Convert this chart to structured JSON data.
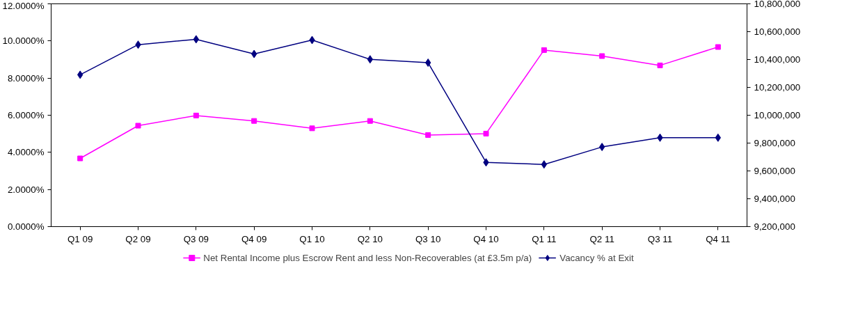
{
  "chart_data": {
    "type": "line",
    "categories": [
      "Q1 09",
      "Q2 09",
      "Q3 09",
      "Q4 09",
      "Q1 10",
      "Q2 10",
      "Q3 10",
      "Q4 10",
      "Q1 11",
      "Q2 11",
      "Q3 11",
      "Q4 11"
    ],
    "series": [
      {
        "name": "Net Rental Income plus Escrow Rent and less Non-Recoverables (at £3.5m p/a)",
        "color": "#ff00ff",
        "marker": "square",
        "axis": "y2",
        "values": [
          9690000,
          9925000,
          9998000,
          9959000,
          9906000,
          9959000,
          9858000,
          9868000,
          10468000,
          10425000,
          10358000,
          10490000
        ]
      },
      {
        "name": "Vacancy % at Exit",
        "color": "#000080",
        "marker": "diamond",
        "values": [
          8.18,
          9.8,
          10.09,
          9.3,
          10.05,
          9.01,
          8.83,
          3.46,
          3.35,
          4.29,
          4.79,
          4.79
        ]
      }
    ],
    "ylim": [
      0,
      12
    ],
    "yticks": [
      {
        "value": 0,
        "label": "0.0000%"
      },
      {
        "value": 2,
        "label": "2.0000%"
      },
      {
        "value": 4,
        "label": "4.0000%"
      },
      {
        "value": 6,
        "label": "6.0000%"
      },
      {
        "value": 8,
        "label": "8.0000%"
      },
      {
        "value": 10,
        "label": "10.0000%"
      },
      {
        "value": 12,
        "label": "12.0000%"
      }
    ],
    "y2lim": [
      9200000,
      10800000
    ],
    "y2ticks": [
      {
        "value": 9200000,
        "label": "9,200,000"
      },
      {
        "value": 9400000,
        "label": "9,400,000"
      },
      {
        "value": 9600000,
        "label": "9,600,000"
      },
      {
        "value": 9800000,
        "label": "9,800,000"
      },
      {
        "value": 10000000,
        "label": "10,000,000"
      },
      {
        "value": 10200000,
        "label": "10,200,000"
      },
      {
        "value": 10400000,
        "label": "10,400,000"
      },
      {
        "value": 10600000,
        "label": "10,600,000"
      },
      {
        "value": 10800000,
        "label": "10,800,000"
      }
    ],
    "grid": false,
    "legend": "bottom",
    "line_style": "solid"
  }
}
